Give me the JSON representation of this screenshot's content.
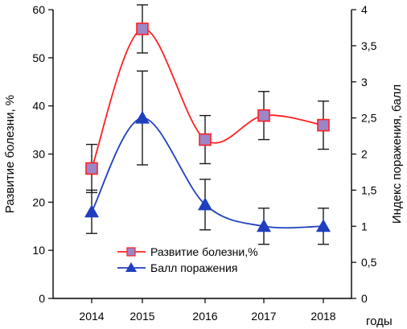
{
  "chart_data": {
    "type": "line",
    "categories": [
      "2014",
      "2015",
      "2016",
      "2017",
      "2018"
    ],
    "xlabel": "годы",
    "ylabel_left": "Развитие болезни, %",
    "ylabel_right": "Индекс поражения, балл",
    "ylim_left": [
      0,
      60
    ],
    "yticks_left": [
      0,
      10,
      20,
      30,
      40,
      50,
      60
    ],
    "ylim_right": [
      0,
      4
    ],
    "yticks_right": [
      "0",
      "0,5",
      "1",
      "1,5",
      "2",
      "2,5",
      "3",
      "3,5",
      "4"
    ],
    "grid": false,
    "legend_position": "bottom-center",
    "series": [
      {
        "name": "Развитие болезни,%",
        "axis": "left",
        "color": "#ff2020",
        "marker": "square",
        "marker_fill": "#9b86c8",
        "values": [
          27,
          56,
          33,
          38,
          36
        ],
        "errors": [
          5,
          5,
          5,
          5,
          5
        ]
      },
      {
        "name": "Балл поражения",
        "axis": "right",
        "color": "#1f3fbf",
        "marker": "triangle",
        "marker_fill": "#1f3fbf",
        "values": [
          1.2,
          2.5,
          1.3,
          1.0,
          1.0
        ],
        "errors": [
          0.3,
          0.65,
          0.35,
          0.25,
          0.25
        ]
      }
    ]
  }
}
